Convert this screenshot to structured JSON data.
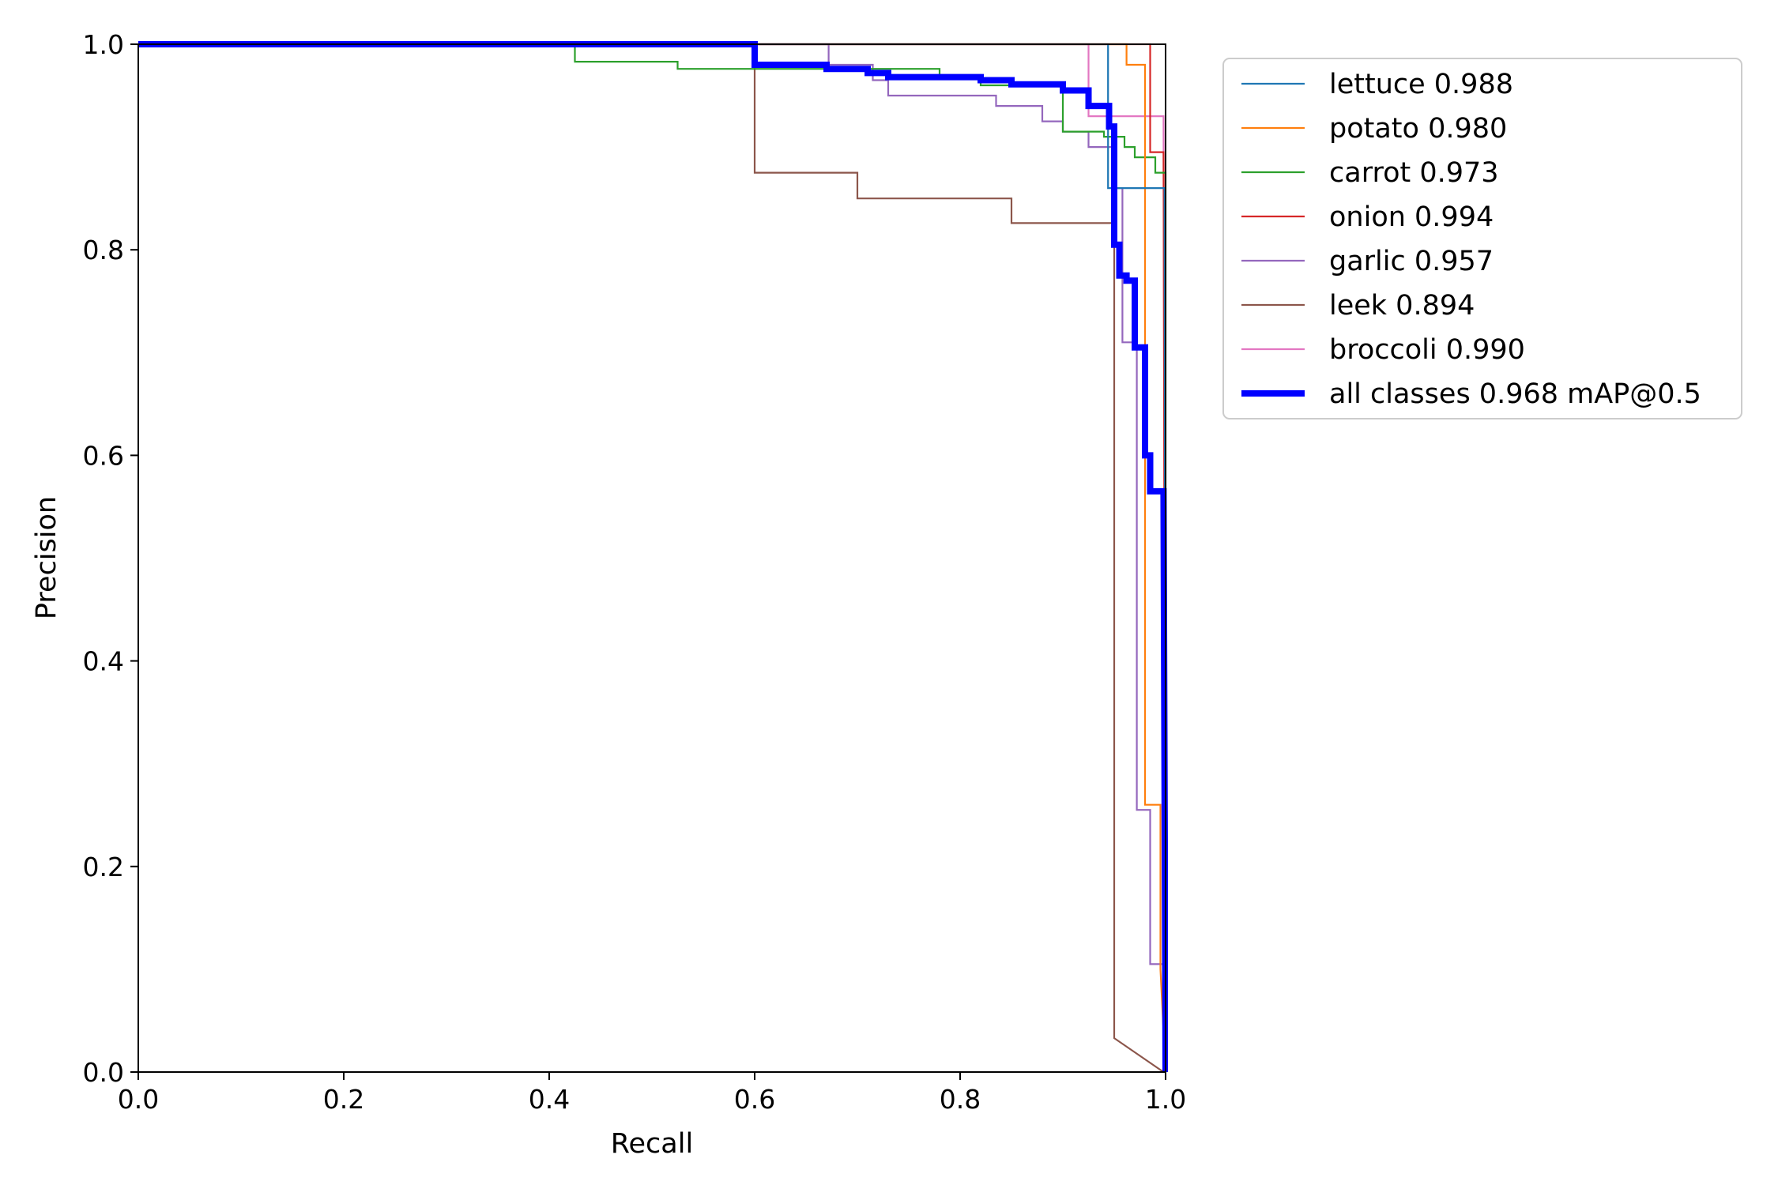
{
  "chart_data": {
    "type": "line",
    "title": "",
    "xlabel": "Recall",
    "ylabel": "Precision",
    "xlim": [
      0,
      1
    ],
    "ylim": [
      0,
      1
    ],
    "x_ticks": [
      "0.0",
      "0.2",
      "0.4",
      "0.6",
      "0.8",
      "1.0"
    ],
    "y_ticks": [
      "0.0",
      "0.2",
      "0.4",
      "0.6",
      "0.8",
      "1.0"
    ],
    "grid": false,
    "legend_position": "outside-top-right",
    "series": [
      {
        "name": "lettuce 0.988",
        "color": "#1f77b4",
        "thick": false,
        "points": [
          [
            0,
            1
          ],
          [
            0.944,
            1
          ],
          [
            0.944,
            0.86
          ],
          [
            0.999,
            0.86
          ],
          [
            1.0,
            0.0
          ]
        ]
      },
      {
        "name": "potato 0.980",
        "color": "#ff7f0e",
        "thick": false,
        "points": [
          [
            0,
            1
          ],
          [
            0.962,
            1
          ],
          [
            0.962,
            0.98
          ],
          [
            0.98,
            0.98
          ],
          [
            0.98,
            0.26
          ],
          [
            0.995,
            0.26
          ],
          [
            0.995,
            0.1
          ],
          [
            1.0,
            0.0
          ]
        ]
      },
      {
        "name": "carrot 0.973",
        "color": "#2ca02c",
        "thick": false,
        "points": [
          [
            0,
            1
          ],
          [
            0.425,
            1
          ],
          [
            0.425,
            0.983
          ],
          [
            0.525,
            0.983
          ],
          [
            0.525,
            0.976
          ],
          [
            0.6,
            0.976
          ],
          [
            0.78,
            0.976
          ],
          [
            0.78,
            0.97
          ],
          [
            0.82,
            0.97
          ],
          [
            0.82,
            0.96
          ],
          [
            0.9,
            0.96
          ],
          [
            0.9,
            0.915
          ],
          [
            0.94,
            0.915
          ],
          [
            0.94,
            0.91
          ],
          [
            0.96,
            0.91
          ],
          [
            0.96,
            0.9
          ],
          [
            0.97,
            0.9
          ],
          [
            0.97,
            0.89
          ],
          [
            0.99,
            0.89
          ],
          [
            0.99,
            0.875
          ],
          [
            1.0,
            0.875
          ],
          [
            1.0,
            0.0
          ]
        ]
      },
      {
        "name": "onion 0.994",
        "color": "#d62728",
        "thick": false,
        "points": [
          [
            0,
            1
          ],
          [
            0.985,
            1
          ],
          [
            0.985,
            0.895
          ],
          [
            0.998,
            0.895
          ],
          [
            1.0,
            0.0
          ]
        ]
      },
      {
        "name": "garlic 0.957",
        "color": "#9467bd",
        "thick": false,
        "points": [
          [
            0,
            1
          ],
          [
            0.672,
            1
          ],
          [
            0.672,
            0.98
          ],
          [
            0.715,
            0.98
          ],
          [
            0.715,
            0.965
          ],
          [
            0.73,
            0.965
          ],
          [
            0.73,
            0.95
          ],
          [
            0.835,
            0.95
          ],
          [
            0.835,
            0.94
          ],
          [
            0.88,
            0.94
          ],
          [
            0.88,
            0.925
          ],
          [
            0.9,
            0.925
          ],
          [
            0.9,
            0.915
          ],
          [
            0.925,
            0.915
          ],
          [
            0.925,
            0.9
          ],
          [
            0.95,
            0.9
          ],
          [
            0.95,
            0.86
          ],
          [
            0.958,
            0.86
          ],
          [
            0.958,
            0.71
          ],
          [
            0.972,
            0.71
          ],
          [
            0.972,
            0.255
          ],
          [
            0.985,
            0.255
          ],
          [
            0.985,
            0.105
          ],
          [
            0.998,
            0.105
          ],
          [
            1.0,
            0.0
          ]
        ]
      },
      {
        "name": "leek 0.894",
        "color": "#8c564b",
        "thick": false,
        "points": [
          [
            0,
            1
          ],
          [
            0.6,
            1
          ],
          [
            0.6,
            0.875
          ],
          [
            0.7,
            0.875
          ],
          [
            0.7,
            0.85
          ],
          [
            0.85,
            0.85
          ],
          [
            0.85,
            0.826
          ],
          [
            0.95,
            0.826
          ],
          [
            0.95,
            0.033
          ],
          [
            0.998,
            0.0
          ]
        ]
      },
      {
        "name": "broccoli 0.990",
        "color": "#e377c2",
        "thick": false,
        "points": [
          [
            0,
            1
          ],
          [
            0.925,
            1
          ],
          [
            0.925,
            0.93
          ],
          [
            0.998,
            0.93
          ],
          [
            1.0,
            0.0
          ]
        ]
      },
      {
        "name": "all classes 0.968 mAP@0.5",
        "color": "#0000ff",
        "thick": true,
        "points": [
          [
            0,
            1
          ],
          [
            0.6,
            1
          ],
          [
            0.6,
            0.98
          ],
          [
            0.67,
            0.98
          ],
          [
            0.67,
            0.976
          ],
          [
            0.71,
            0.976
          ],
          [
            0.71,
            0.972
          ],
          [
            0.73,
            0.972
          ],
          [
            0.73,
            0.968
          ],
          [
            0.82,
            0.968
          ],
          [
            0.82,
            0.965
          ],
          [
            0.85,
            0.965
          ],
          [
            0.85,
            0.961
          ],
          [
            0.9,
            0.961
          ],
          [
            0.9,
            0.955
          ],
          [
            0.925,
            0.955
          ],
          [
            0.925,
            0.94
          ],
          [
            0.945,
            0.94
          ],
          [
            0.945,
            0.92
          ],
          [
            0.95,
            0.92
          ],
          [
            0.95,
            0.805
          ],
          [
            0.955,
            0.805
          ],
          [
            0.955,
            0.775
          ],
          [
            0.962,
            0.775
          ],
          [
            0.962,
            0.77
          ],
          [
            0.97,
            0.77
          ],
          [
            0.97,
            0.705
          ],
          [
            0.98,
            0.705
          ],
          [
            0.98,
            0.6
          ],
          [
            0.985,
            0.6
          ],
          [
            0.985,
            0.565
          ],
          [
            0.998,
            0.565
          ],
          [
            1.0,
            0.0
          ]
        ]
      }
    ]
  }
}
